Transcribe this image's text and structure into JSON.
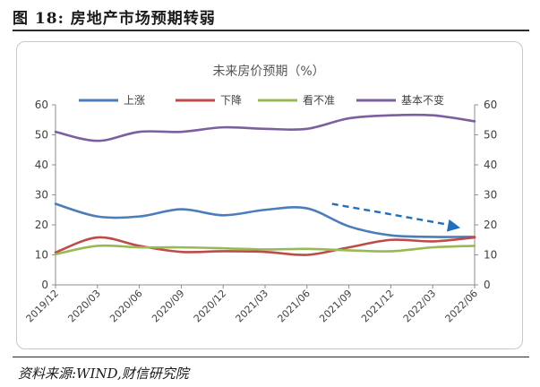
{
  "figure": {
    "title": "图 18:  房地产市场预期转弱",
    "source": "资料来源:WIND,财信研究院"
  },
  "chart_data": {
    "type": "line",
    "title": "未来房价预期（%）",
    "x": [
      "2019/12",
      "2020/03",
      "2020/06",
      "2020/09",
      "2020/12",
      "2021/03",
      "2021/06",
      "2021/09",
      "2021/12",
      "2022/03",
      "2022/06"
    ],
    "ylim": [
      0,
      60
    ],
    "yticks": [
      0,
      10,
      20,
      30,
      40,
      50,
      60
    ],
    "y2ticks": [
      0,
      10,
      20,
      30,
      40,
      50,
      60
    ],
    "grid": false,
    "legend": "top",
    "series": [
      {
        "name": "上涨",
        "color": "#4a7ebb",
        "values": [
          27,
          22.8,
          22.8,
          25.2,
          23.2,
          25.0,
          25.5,
          19.5,
          16.5,
          16.0,
          16.0
        ]
      },
      {
        "name": "下降",
        "color": "#be4b48",
        "values": [
          10.8,
          15.8,
          13.0,
          11.0,
          11.2,
          11.0,
          10.0,
          12.5,
          15.0,
          14.5,
          15.8
        ]
      },
      {
        "name": "看不准",
        "color": "#98b954",
        "values": [
          10.2,
          13.0,
          12.5,
          12.5,
          12.2,
          11.8,
          12.0,
          11.5,
          11.2,
          12.5,
          13.0
        ]
      },
      {
        "name": "基本不变",
        "color": "#7d5fa0",
        "values": [
          51.0,
          48.0,
          51.0,
          51.0,
          52.5,
          52.0,
          52.0,
          55.5,
          56.5,
          56.5,
          54.5
        ]
      }
    ],
    "annotation": {
      "type": "trend-arrow",
      "color": "#1f6fbf",
      "from": {
        "x": "2021/06",
        "y": 27
      },
      "to": {
        "x": "2022/06",
        "y": 19
      }
    }
  }
}
